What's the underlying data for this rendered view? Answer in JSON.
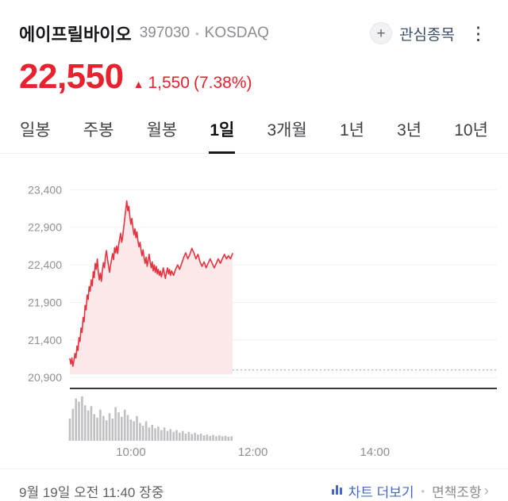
{
  "colors": {
    "up_red": "#e8212e",
    "link_blue": "#4468c8"
  },
  "header": {
    "stock_name": "에이프릴바이오",
    "stock_code": "397030",
    "separator": "•",
    "market": "KOSDAQ",
    "watchlist": {
      "plus": "+",
      "label": "관심종목"
    },
    "menu_icon": "⋮"
  },
  "price": {
    "current": "22,550",
    "arrow": "▲",
    "change": "1,550",
    "change_percent": "(7.38%)"
  },
  "tabs": {
    "items": [
      {
        "label": "일봉",
        "active": false
      },
      {
        "label": "주봉",
        "active": false
      },
      {
        "label": "월봉",
        "active": false
      },
      {
        "label": "1일",
        "active": true
      },
      {
        "label": "3개월",
        "active": false
      },
      {
        "label": "1년",
        "active": false
      },
      {
        "label": "3년",
        "active": false
      },
      {
        "label": "10년",
        "active": false
      }
    ]
  },
  "chart_data": {
    "type": "area",
    "title": "에이프릴바이오 1일 주가 차트",
    "line_color": "#e5333f",
    "fill_color": "#fbe9ea",
    "volume_color": "#bfbfc4",
    "grid_color": "#f1f1f4",
    "prev_close_line_color": "#a0a0a6",
    "axis_label_color": "#8f8f96",
    "y_domain": [
      20860,
      23520
    ],
    "x_domain_minutes": [
      540,
      960
    ],
    "fill_baseline": 20940,
    "prev_close": 21000,
    "y_ticks": [
      23400,
      22900,
      22400,
      21900,
      21400,
      20900
    ],
    "y_tick_labels": [
      "23,400",
      "22,900",
      "22,400",
      "21,900",
      "21,400",
      "20,900"
    ],
    "x_ticks_minutes": [
      600,
      720,
      840
    ],
    "x_tick_labels": [
      "10:00",
      "12:00",
      "14:00"
    ],
    "points": [
      [
        540,
        21150
      ],
      [
        541,
        21080
      ],
      [
        542,
        21160
      ],
      [
        543,
        21050
      ],
      [
        544,
        21120
      ],
      [
        545,
        21220
      ],
      [
        546,
        21160
      ],
      [
        547,
        21320
      ],
      [
        548,
        21260
      ],
      [
        549,
        21430
      ],
      [
        550,
        21380
      ],
      [
        551,
        21560
      ],
      [
        552,
        21500
      ],
      [
        553,
        21700
      ],
      [
        554,
        21640
      ],
      [
        555,
        21860
      ],
      [
        556,
        21800
      ],
      [
        557,
        22000
      ],
      [
        558,
        21940
      ],
      [
        559,
        22110
      ],
      [
        560,
        22050
      ],
      [
        561,
        22200
      ],
      [
        562,
        22120
      ],
      [
        563,
        22310
      ],
      [
        564,
        22230
      ],
      [
        565,
        22420
      ],
      [
        566,
        22340
      ],
      [
        567,
        22480
      ],
      [
        568,
        22300
      ],
      [
        569,
        22200
      ],
      [
        570,
        22290
      ],
      [
        571,
        22180
      ],
      [
        572,
        22330
      ],
      [
        573,
        22430
      ],
      [
        574,
        22360
      ],
      [
        575,
        22510
      ],
      [
        576,
        22590
      ],
      [
        577,
        22480
      ],
      [
        578,
        22390
      ],
      [
        579,
        22300
      ],
      [
        580,
        22390
      ],
      [
        581,
        22470
      ],
      [
        582,
        22550
      ],
      [
        583,
        22470
      ],
      [
        584,
        22630
      ],
      [
        585,
        22560
      ],
      [
        586,
        22650
      ],
      [
        587,
        22550
      ],
      [
        588,
        22670
      ],
      [
        589,
        22750
      ],
      [
        590,
        22820
      ],
      [
        591,
        22700
      ],
      [
        592,
        22780
      ],
      [
        593,
        22900
      ],
      [
        594,
        23020
      ],
      [
        595,
        23140
      ],
      [
        596,
        23250
      ],
      [
        597,
        23120
      ],
      [
        598,
        23180
      ],
      [
        599,
        23040
      ],
      [
        600,
        22940
      ],
      [
        601,
        23020
      ],
      [
        602,
        22900
      ],
      [
        603,
        22800
      ],
      [
        604,
        22880
      ],
      [
        605,
        22760
      ],
      [
        606,
        22840
      ],
      [
        607,
        22720
      ],
      [
        608,
        22640
      ],
      [
        609,
        22700
      ],
      [
        610,
        22600
      ],
      [
        611,
        22520
      ],
      [
        612,
        22600
      ],
      [
        613,
        22500
      ],
      [
        614,
        22420
      ],
      [
        615,
        22500
      ],
      [
        616,
        22380
      ],
      [
        617,
        22460
      ],
      [
        618,
        22540
      ],
      [
        619,
        22440
      ],
      [
        620,
        22360
      ],
      [
        621,
        22440
      ],
      [
        622,
        22320
      ],
      [
        623,
        22400
      ],
      [
        624,
        22300
      ],
      [
        625,
        22380
      ],
      [
        626,
        22280
      ],
      [
        627,
        22340
      ],
      [
        628,
        22260
      ],
      [
        629,
        22320
      ],
      [
        630,
        22240
      ],
      [
        631,
        22300
      ],
      [
        632,
        22360
      ],
      [
        633,
        22280
      ],
      [
        634,
        22220
      ],
      [
        635,
        22300
      ],
      [
        636,
        22360
      ],
      [
        637,
        22280
      ],
      [
        638,
        22340
      ],
      [
        639,
        22260
      ],
      [
        640,
        22320
      ],
      [
        642,
        22260
      ],
      [
        644,
        22340
      ],
      [
        646,
        22400
      ],
      [
        648,
        22340
      ],
      [
        650,
        22420
      ],
      [
        652,
        22500
      ],
      [
        654,
        22560
      ],
      [
        656,
        22480
      ],
      [
        658,
        22540
      ],
      [
        660,
        22620
      ],
      [
        662,
        22560
      ],
      [
        664,
        22480
      ],
      [
        666,
        22540
      ],
      [
        668,
        22440
      ],
      [
        670,
        22380
      ],
      [
        672,
        22440
      ],
      [
        674,
        22360
      ],
      [
        676,
        22420
      ],
      [
        678,
        22480
      ],
      [
        680,
        22420
      ],
      [
        682,
        22360
      ],
      [
        684,
        22420
      ],
      [
        686,
        22480
      ],
      [
        688,
        22420
      ],
      [
        690,
        22480
      ],
      [
        692,
        22540
      ],
      [
        694,
        22480
      ],
      [
        696,
        22520
      ],
      [
        698,
        22480
      ],
      [
        700,
        22550
      ]
    ],
    "volumes": [
      [
        540,
        50
      ],
      [
        543,
        72
      ],
      [
        546,
        95
      ],
      [
        549,
        88
      ],
      [
        552,
        100
      ],
      [
        555,
        80
      ],
      [
        558,
        68
      ],
      [
        561,
        78
      ],
      [
        564,
        60
      ],
      [
        567,
        52
      ],
      [
        570,
        70
      ],
      [
        573,
        56
      ],
      [
        576,
        46
      ],
      [
        579,
        62
      ],
      [
        582,
        50
      ],
      [
        585,
        76
      ],
      [
        588,
        64
      ],
      [
        591,
        54
      ],
      [
        594,
        70
      ],
      [
        597,
        58
      ],
      [
        600,
        48
      ],
      [
        603,
        44
      ],
      [
        606,
        56
      ],
      [
        609,
        40
      ],
      [
        612,
        34
      ],
      [
        615,
        44
      ],
      [
        618,
        30
      ],
      [
        621,
        36
      ],
      [
        624,
        28
      ],
      [
        627,
        32
      ],
      [
        630,
        24
      ],
      [
        633,
        30
      ],
      [
        636,
        22
      ],
      [
        639,
        26
      ],
      [
        642,
        20
      ],
      [
        645,
        24
      ],
      [
        648,
        18
      ],
      [
        651,
        22
      ],
      [
        654,
        16
      ],
      [
        657,
        20
      ],
      [
        660,
        15
      ],
      [
        663,
        18
      ],
      [
        666,
        14
      ],
      [
        669,
        16
      ],
      [
        672,
        12
      ],
      [
        675,
        14
      ],
      [
        678,
        11
      ],
      [
        681,
        13
      ],
      [
        684,
        10
      ],
      [
        687,
        12
      ],
      [
        690,
        10
      ],
      [
        693,
        11
      ],
      [
        696,
        9
      ],
      [
        699,
        10
      ]
    ]
  },
  "footer": {
    "datetime": "9월 19일 오전 11:40 장중",
    "chart_more": "차트 더보기",
    "dot": "•",
    "disclaimer": "면책조항",
    "chevron": "›"
  }
}
